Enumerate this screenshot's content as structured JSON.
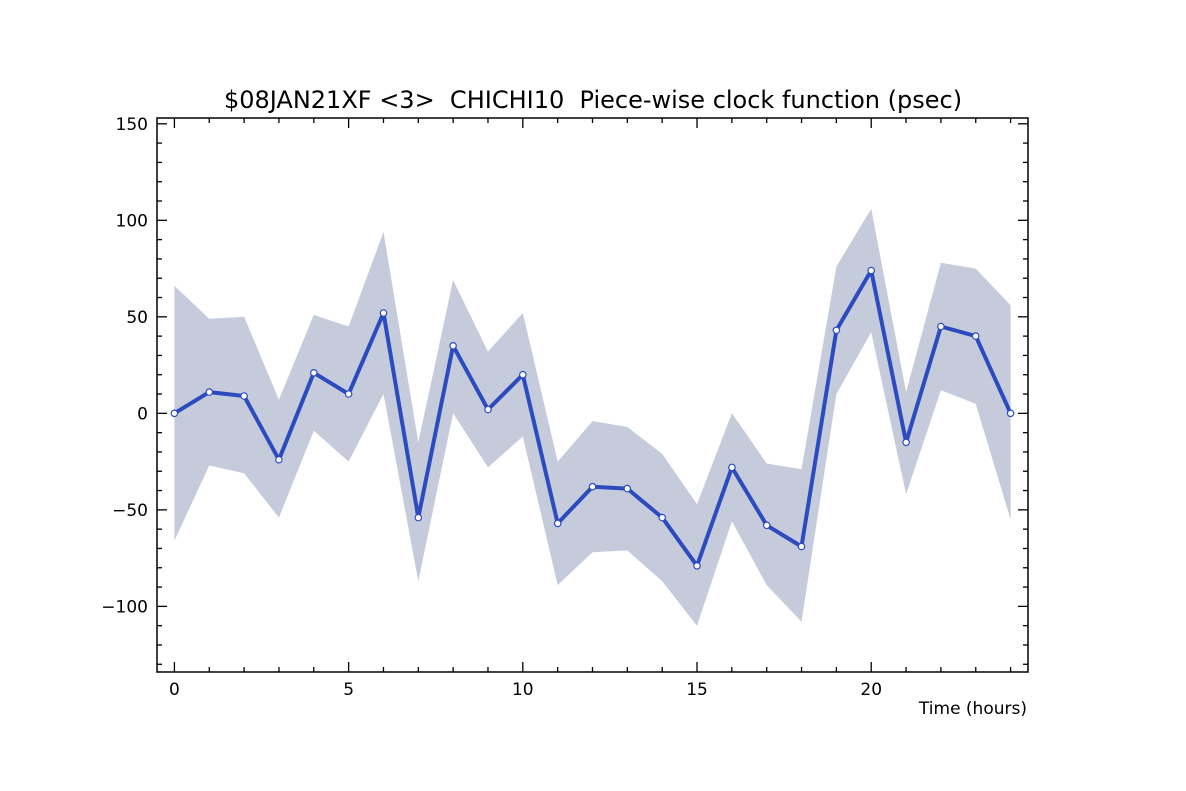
{
  "chart_data": {
    "type": "line",
    "title": "$08JAN21XF <3>  CHICHI10  Piece-wise clock function (psec)",
    "xlabel": "Time (hours)",
    "ylabel": "",
    "xlim": [
      -0.5,
      24.5
    ],
    "ylim": [
      -134,
      153
    ],
    "x_ticks": [
      0,
      5,
      10,
      15,
      20
    ],
    "y_ticks": [
      -100,
      -50,
      0,
      50,
      100,
      150
    ],
    "x_tick_labels": [
      "0",
      "5",
      "10",
      "15",
      "20"
    ],
    "y_tick_labels": [
      "−100",
      "−50",
      "0",
      "50",
      "100",
      "150"
    ],
    "grid": false,
    "legend": "none",
    "colors": {
      "line": "#2b4bbf",
      "band": "#c6cbdc",
      "marker_fill": "#ffffff",
      "axis": "#000000"
    },
    "x": [
      0,
      1,
      2,
      3,
      4,
      5,
      6,
      7,
      8,
      9,
      10,
      11,
      12,
      13,
      14,
      15,
      16,
      17,
      18,
      19,
      20,
      21,
      22,
      23,
      24
    ],
    "series": [
      {
        "values": [
          0,
          11,
          9,
          -24,
          21,
          10,
          52,
          -54,
          35,
          2,
          20,
          -57,
          -38,
          -39,
          -54,
          -79,
          -28,
          -58,
          -69,
          43,
          74,
          -15,
          45,
          40,
          0
        ],
        "upper": [
          66,
          49,
          50,
          7,
          51,
          45,
          94,
          -15,
          69,
          32,
          52,
          -25,
          -4,
          -7,
          -21,
          -47,
          0,
          -26,
          -29,
          76,
          106,
          11,
          78,
          75,
          56
        ],
        "lower": [
          -66,
          -27,
          -31,
          -54,
          -9,
          -25,
          10,
          -87,
          0,
          -28,
          -12,
          -89,
          -72,
          -71,
          -87,
          -110,
          -56,
          -89,
          -108,
          10,
          42,
          -42,
          12,
          5,
          -55
        ]
      }
    ]
  }
}
